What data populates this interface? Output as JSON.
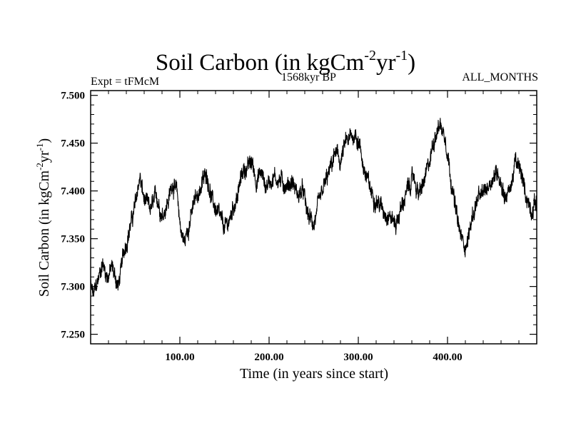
{
  "chart_data": {
    "type": "line",
    "title": "Soil Carbon (in kgCm",
    "title_sup1": "-2",
    "title_mid": "yr",
    "title_sup2": "-1",
    "title_end": ")",
    "subtitle_left": "Expt = tFMcM",
    "subtitle_center": "1568kyr BP",
    "subtitle_right": "ALL_MONTHS",
    "xlabel": "Time (in years since start)",
    "ylabel_parts": [
      "Soil Carbon (in kgCm",
      "-2",
      "yr",
      "-1",
      ")"
    ],
    "xlim": [
      0,
      500
    ],
    "ylim": [
      7.24,
      7.505
    ],
    "xticks": [
      100,
      200,
      300,
      400
    ],
    "xtick_labels": [
      "100.00",
      "200.00",
      "300.00",
      "400.00"
    ],
    "yticks": [
      7.25,
      7.3,
      7.35,
      7.4,
      7.45,
      7.5
    ],
    "ytick_labels": [
      "7.250",
      "7.300",
      "7.350",
      "7.400",
      "7.450",
      "7.500"
    ],
    "noise_amplitude": 0.012,
    "series": [
      {
        "name": "Soil Carbon",
        "color": "#000000",
        "x": [
          0,
          3,
          8,
          13,
          19,
          24,
          31,
          38,
          45,
          50,
          55,
          60,
          67,
          74,
          80,
          87,
          92,
          97,
          101,
          105,
          110,
          117,
          124,
          130,
          136,
          143,
          150,
          156,
          160,
          165,
          170,
          176,
          181,
          186,
          191,
          196,
          205,
          214,
          220,
          226,
          232,
          238,
          243,
          250,
          256,
          262,
          268,
          274,
          280,
          286,
          292,
          297,
          301,
          307,
          314,
          321,
          328,
          335,
          342,
          349,
          355,
          362,
          368,
          374,
          380,
          386,
          392,
          398,
          403,
          409,
          414,
          418,
          422,
          427,
          433,
          439,
          445,
          451,
          457,
          464,
          470,
          476,
          482,
          488,
          494,
          500
        ],
        "y": [
          7.3,
          7.29,
          7.305,
          7.325,
          7.31,
          7.32,
          7.3,
          7.34,
          7.365,
          7.385,
          7.415,
          7.39,
          7.38,
          7.395,
          7.375,
          7.39,
          7.41,
          7.395,
          7.36,
          7.345,
          7.365,
          7.39,
          7.405,
          7.42,
          7.39,
          7.375,
          7.36,
          7.37,
          7.385,
          7.395,
          7.42,
          7.425,
          7.43,
          7.41,
          7.42,
          7.405,
          7.415,
          7.41,
          7.405,
          7.41,
          7.395,
          7.4,
          7.375,
          7.365,
          7.385,
          7.405,
          7.42,
          7.44,
          7.43,
          7.45,
          7.455,
          7.46,
          7.45,
          7.42,
          7.4,
          7.39,
          7.38,
          7.375,
          7.365,
          7.385,
          7.4,
          7.415,
          7.395,
          7.41,
          7.43,
          7.46,
          7.47,
          7.455,
          7.42,
          7.38,
          7.355,
          7.345,
          7.345,
          7.37,
          7.39,
          7.395,
          7.405,
          7.415,
          7.42,
          7.395,
          7.4,
          7.43,
          7.42,
          7.395,
          7.38,
          7.39
        ]
      }
    ]
  }
}
